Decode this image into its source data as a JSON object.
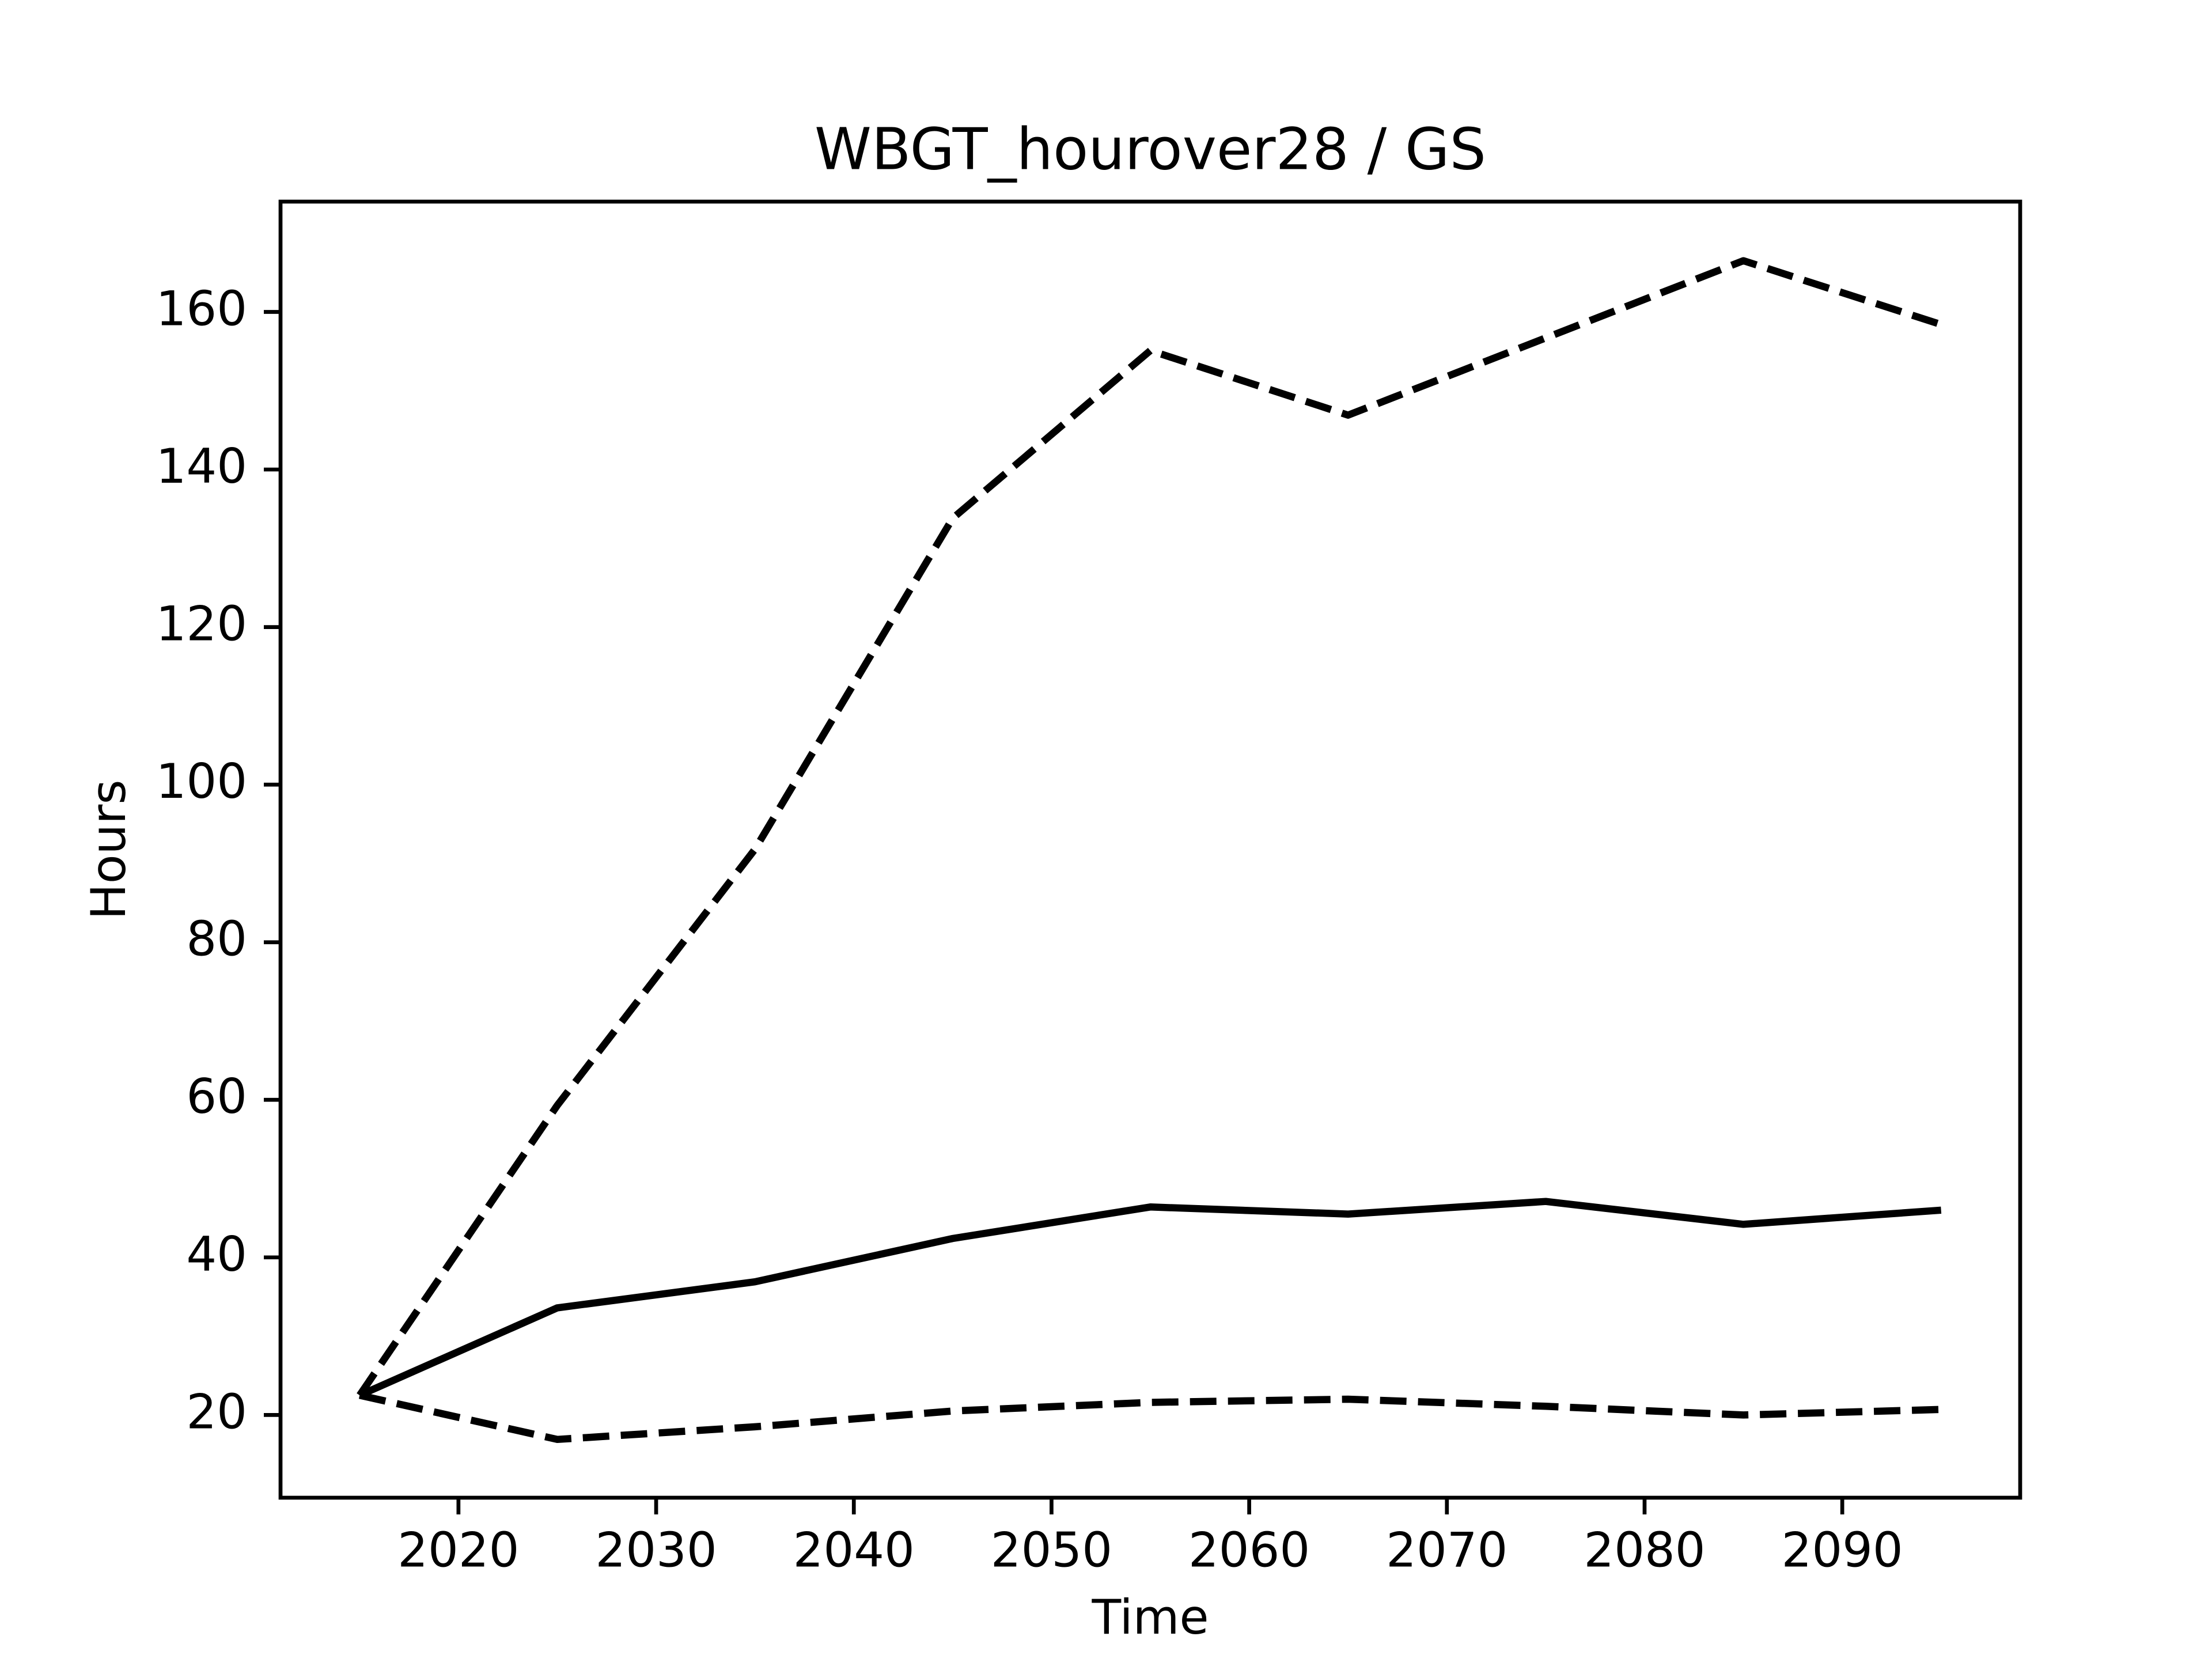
{
  "chart_data": {
    "type": "line",
    "title": "WBGT_hourover28 / GS",
    "x_label": "Time",
    "y_label": "Hours",
    "x": [
      2015,
      2025,
      2035,
      2045,
      2055,
      2065,
      2075,
      2085,
      2095
    ],
    "series": [
      {
        "color": "#000000",
        "style": "solid",
        "values": [
          22.5,
          33.6,
          36.9,
          42.4,
          46.4,
          45.5,
          47.1,
          44.2,
          46.0
        ]
      },
      {
        "color": "#000000",
        "style": "dashed",
        "values": [
          22.5,
          59.3,
          91.8,
          133.8,
          155.1,
          146.9,
          156.7,
          166.5,
          158.4
        ]
      },
      {
        "color": "#000000",
        "style": "dashed",
        "values": [
          22.5,
          16.9,
          18.5,
          20.5,
          21.6,
          22.0,
          21.1,
          20.0,
          20.7
        ]
      }
    ],
    "xlim": [
      2011,
      2099
    ],
    "ylim": [
      9.5,
      174
    ],
    "xticks": [
      2020,
      2030,
      2040,
      2050,
      2060,
      2070,
      2080,
      2090
    ],
    "yticks": [
      20,
      40,
      60,
      80,
      100,
      120,
      140,
      160
    ],
    "grid": false
  }
}
